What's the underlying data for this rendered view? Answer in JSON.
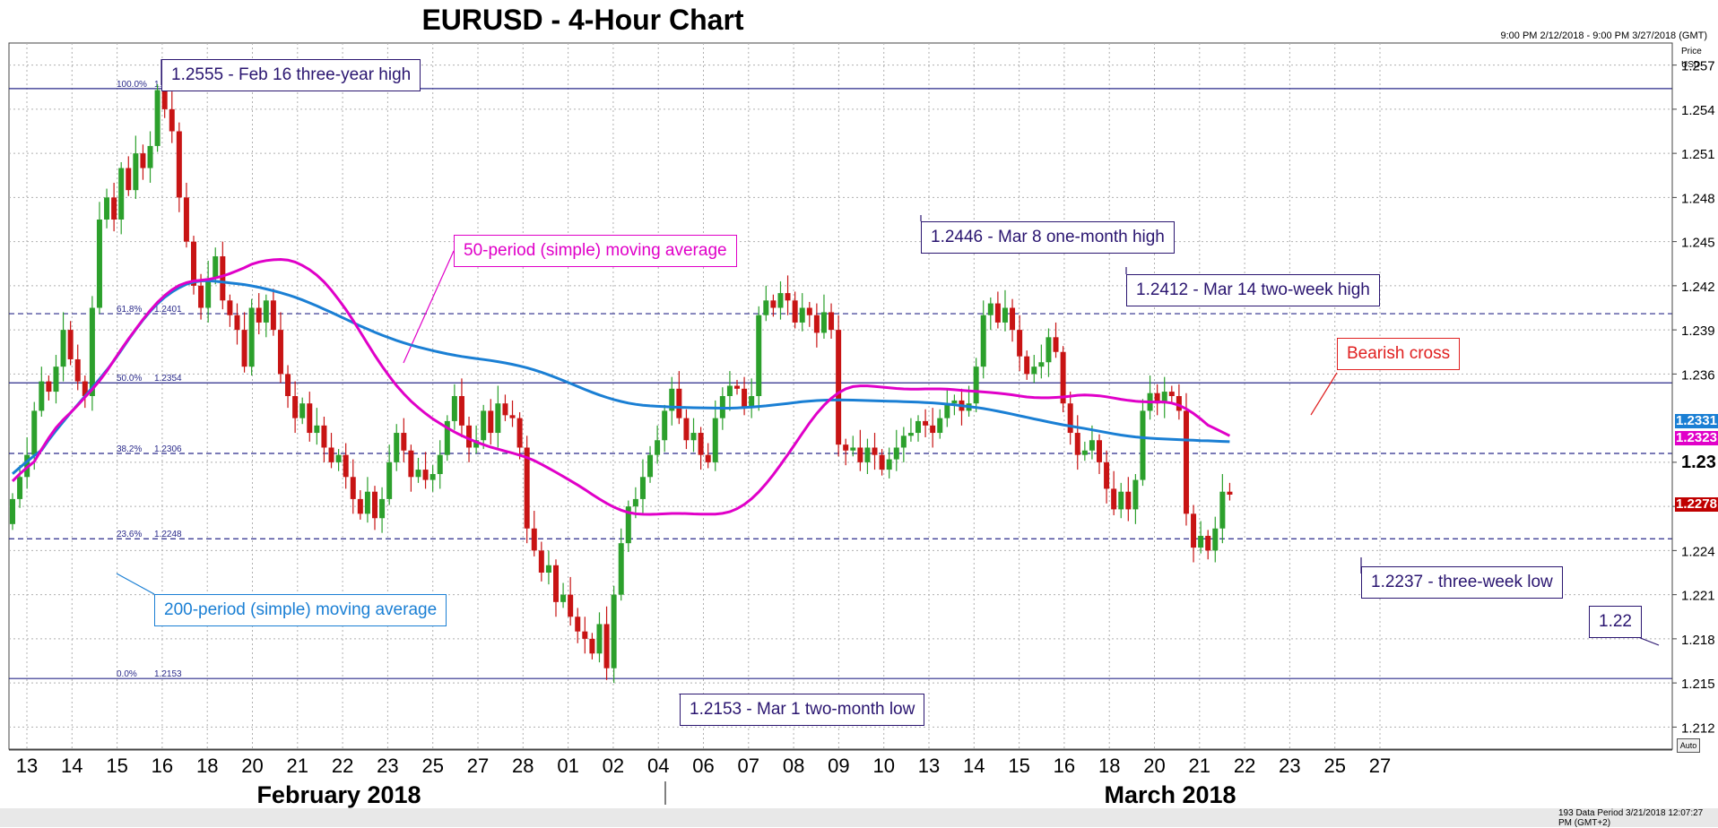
{
  "title": "EURUSD - 4-Hour Chart",
  "date_range": "9:00 PM 2/12/2018 - 9:00 PM 3/27/2018 (GMT)",
  "price_axis_label_1": "Price",
  "price_axis_label_2": "USD",
  "auto_button": "Auto",
  "status_text": "193 Data Period    3/21/2018 12:07:27 PM  (GMT+2)",
  "price_tags": {
    "ma200": "1.2331",
    "ma50": "1.2323",
    "current": "1.2278"
  },
  "annotations": {
    "high": "1.2555 - Feb 16 three-year high",
    "ma50": "50-period (simple) moving average",
    "mar8": "1.2446 - Mar 8 one-month high",
    "mar14": "1.2412 - Mar 14 two-week high",
    "bearish": "Bearish cross",
    "low3w": "1.2237 - three-week low",
    "ma200": "200-period (simple) moving average",
    "low2m": "1.2153 - Mar 1 two-month low",
    "target": "1.22"
  },
  "chart_data": {
    "type": "candlestick",
    "title": "EURUSD - 4-Hour Chart",
    "ylabel": "Price USD",
    "ylim": [
      1.2105,
      1.2585
    ],
    "y_ticks": [
      1.257,
      1.254,
      1.251,
      1.248,
      1.245,
      1.242,
      1.239,
      1.236,
      1.23,
      1.227,
      1.224,
      1.221,
      1.218,
      1.215,
      1.212
    ],
    "y_tick_labels": [
      "1.257",
      "1.254",
      "1.251",
      "1.248",
      "1.245",
      "1.242",
      "1.239",
      "1.236",
      "1.23",
      "1.227",
      "1.224",
      "1.221",
      "1.218",
      "1.215",
      "1.212"
    ],
    "x_day_labels": [
      "13",
      "14",
      "15",
      "16",
      "18",
      "20",
      "21",
      "22",
      "23",
      "25",
      "27",
      "28",
      "01",
      "02",
      "04",
      "06",
      "07",
      "08",
      "09",
      "10",
      "13",
      "14",
      "15",
      "16",
      "18",
      "20",
      "21",
      "22",
      "23",
      "25",
      "27"
    ],
    "months": [
      "February 2018",
      "March 2018"
    ],
    "fibonacci": [
      {
        "label": "100.0%",
        "price": 1.2554,
        "price_label": "1.2554"
      },
      {
        "label": "61.8%",
        "price": 1.2401,
        "price_label": "1.2401"
      },
      {
        "label": "50.0%",
        "price": 1.2354,
        "price_label": "1.2354"
      },
      {
        "label": "38.2%",
        "price": 1.2306,
        "price_label": "1.2306"
      },
      {
        "label": "23.6%",
        "price": 1.2248,
        "price_label": "1.2248"
      },
      {
        "label": "0.0%",
        "price": 1.2153,
        "price_label": "1.2153"
      }
    ],
    "closes": [
      1.2275,
      1.229,
      1.2305,
      1.2335,
      1.2355,
      1.2348,
      1.2365,
      1.239,
      1.237,
      1.2355,
      1.2345,
      1.2405,
      1.2465,
      1.248,
      1.2465,
      1.25,
      1.2485,
      1.251,
      1.25,
      1.2515,
      1.2553,
      1.254,
      1.2525,
      1.248,
      1.245,
      1.242,
      1.2405,
      1.2425,
      1.244,
      1.241,
      1.24,
      1.239,
      1.2365,
      1.2405,
      1.2395,
      1.241,
      1.239,
      1.236,
      1.2345,
      1.233,
      1.234,
      1.232,
      1.2325,
      1.231,
      1.23,
      1.2305,
      1.229,
      1.2275,
      1.2265,
      1.228,
      1.2262,
      1.2275,
      1.23,
      1.232,
      1.2308,
      1.229,
      1.2295,
      1.2288,
      1.2292,
      1.2305,
      1.2328,
      1.2345,
      1.2325,
      1.231,
      1.2315,
      1.2335,
      1.232,
      1.234,
      1.2332,
      1.233,
      1.231,
      1.2255,
      1.224,
      1.2225,
      1.223,
      1.2205,
      1.221,
      1.2195,
      1.2185,
      1.218,
      1.217,
      1.219,
      1.216,
      1.221,
      1.2245,
      1.227,
      1.2275,
      1.229,
      1.2305,
      1.2315,
      1.2335,
      1.235,
      1.233,
      1.2315,
      1.232,
      1.2305,
      1.23,
      1.233,
      1.2345,
      1.2352,
      1.235,
      1.2338,
      1.2345,
      1.24,
      1.241,
      1.2405,
      1.2415,
      1.241,
      1.2395,
      1.2405,
      1.24,
      1.2388,
      1.2402,
      1.239,
      1.2312,
      1.2308,
      1.231,
      1.23,
      1.231,
      1.2305,
      1.2295,
      1.2302,
      1.231,
      1.2318,
      1.232,
      1.2328,
      1.2325,
      1.232,
      1.233,
      1.234,
      1.2342,
      1.2335,
      1.234,
      1.2365,
      1.24,
      1.2408,
      1.2395,
      1.2405,
      1.239,
      1.2372,
      1.236,
      1.2365,
      1.2368,
      1.2385,
      1.2375,
      1.234,
      1.232,
      1.2305,
      1.2308,
      1.2315,
      1.23,
      1.2282,
      1.2268,
      1.228,
      1.2268,
      1.2288,
      1.2335,
      1.2347,
      1.234,
      1.2348,
      1.2345,
      1.2335,
      1.2265,
      1.2242,
      1.225,
      1.224,
      1.2255,
      1.228,
      1.2278
    ]
  }
}
